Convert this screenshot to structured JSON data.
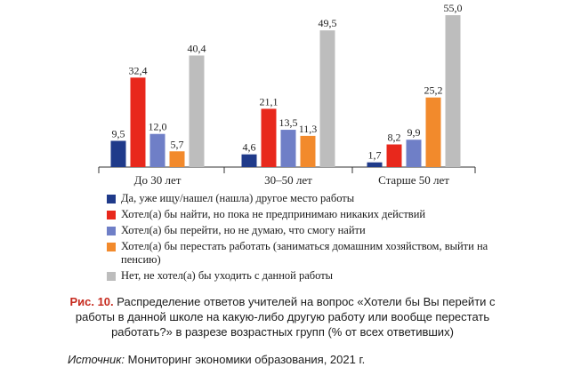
{
  "chart_data": {
    "type": "bar",
    "categories": [
      "До 30 лет",
      "30–50 лет",
      "Старше 50 лет"
    ],
    "series": [
      {
        "name": "Да, уже ищу/нашел (нашла) другое место работы",
        "color": "#1f3a8a",
        "values": [
          9.5,
          4.6,
          1.7
        ],
        "labels": [
          "9,5",
          "4,6",
          "1,7"
        ]
      },
      {
        "name": "Хотел(а) бы найти, но пока не предпринимаю никаких действий",
        "color": "#e8281c",
        "values": [
          32.4,
          21.1,
          8.2
        ],
        "labels": [
          "32,4",
          "21,1",
          "8,2"
        ]
      },
      {
        "name": "Хотел(а) бы перейти, но не думаю, что смогу найти",
        "color": "#6f7fc7",
        "values": [
          12.0,
          13.5,
          9.9
        ],
        "labels": [
          "12,0",
          "13,5",
          "9,9"
        ]
      },
      {
        "name": "Хотел(а) бы перестать работать (заниматься домашним хозяйством, выйти на пенсию)",
        "color": "#f28a2c",
        "values": [
          5.7,
          11.3,
          25.2
        ],
        "labels": [
          "5,7",
          "11,3",
          "25,2"
        ]
      },
      {
        "name": "Нет, не хотел(а) бы уходить с данной работы",
        "color": "#bdbdbd",
        "values": [
          40.4,
          49.5,
          55.0
        ],
        "labels": [
          "40,4",
          "49,5",
          "55,0"
        ]
      }
    ],
    "ylim": [
      0,
      56
    ],
    "title": "",
    "xlabel": "",
    "ylabel": ""
  },
  "legend": [
    {
      "label": "Да, уже ищу/нашел (нашла) другое место работы",
      "color": "#1f3a8a"
    },
    {
      "label": "Хотел(а) бы найти, но пока не предпринимаю никаких действий",
      "color": "#e8281c"
    },
    {
      "label": "Хотел(а) бы перейти, но не думаю, что смогу найти",
      "color": "#6f7fc7"
    },
    {
      "label": "Хотел(а) бы перестать работать (заниматься домашним хозяйством, выйти на пенсию)",
      "color": "#f28a2c"
    },
    {
      "label": "Нет, не хотел(а) бы уходить с данной работы",
      "color": "#bdbdbd"
    }
  ],
  "caption": {
    "fig_label": "Рис. 10.",
    "text": "Распределение ответов учителей на вопрос «Хотели бы Вы перейти с работы в данной школе на какую-либо другую работу или вообще перестать работать?» в разрезе возрастных групп (% от всех ответивших)"
  },
  "source": {
    "label": "Источник:",
    "text": "Мониторинг экономики образования, 2021 г."
  }
}
